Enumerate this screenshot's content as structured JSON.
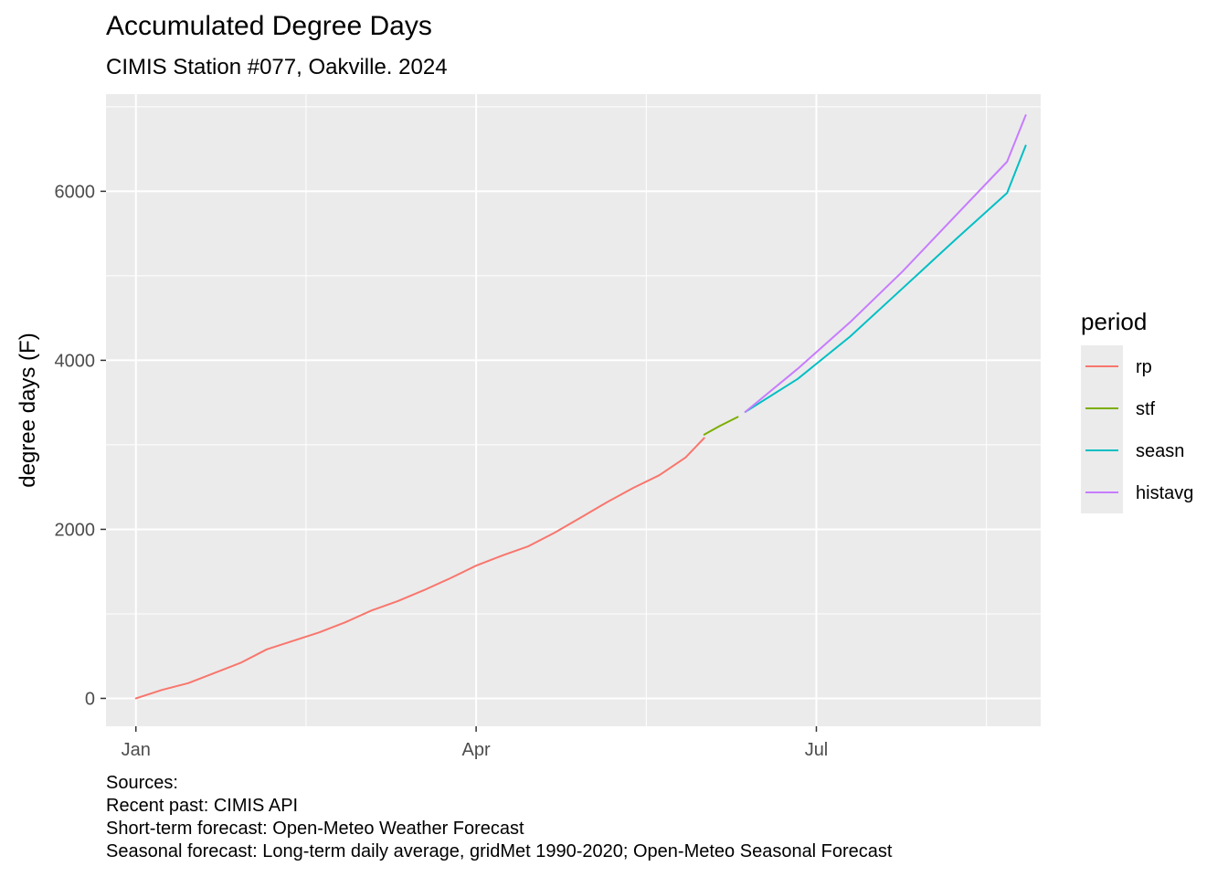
{
  "chart_data": {
    "type": "line",
    "title": "Accumulated Degree Days",
    "subtitle": "CIMIS Station #077, Oakville. 2024",
    "xlabel": "",
    "ylabel": "degree days (F)",
    "x_ticks": [
      "Jan",
      "Apr",
      "Jul"
    ],
    "x_tick_dates": [
      "2024-01-01",
      "2024-04-01",
      "2024-07-01"
    ],
    "xlim": [
      "2023-12-24",
      "2024-08-30"
    ],
    "y_ticks": [
      0,
      2000,
      4000,
      6000
    ],
    "ylim": [
      -330,
      7150
    ],
    "grid": true,
    "legend": {
      "title": "period",
      "position": "right",
      "entries": [
        "rp",
        "stf",
        "seasn",
        "histavg"
      ]
    },
    "series": [
      {
        "name": "rp",
        "color": "#F8766D",
        "x": [
          "2024-01-01",
          "2024-01-08",
          "2024-01-15",
          "2024-01-22",
          "2024-01-29",
          "2024-02-05",
          "2024-02-12",
          "2024-02-19",
          "2024-02-26",
          "2024-03-04",
          "2024-03-11",
          "2024-03-18",
          "2024-03-25",
          "2024-04-01",
          "2024-04-08",
          "2024-04-15",
          "2024-04-22",
          "2024-04-29",
          "2024-05-06",
          "2024-05-13",
          "2024-05-20",
          "2024-05-27",
          "2024-06-01"
        ],
        "y": [
          0,
          100,
          180,
          300,
          420,
          580,
          680,
          780,
          900,
          1040,
          1150,
          1280,
          1420,
          1570,
          1690,
          1800,
          1960,
          2140,
          2320,
          2490,
          2640,
          2850,
          3080
        ]
      },
      {
        "name": "stf",
        "color": "#7CAE00",
        "x": [
          "2024-06-01",
          "2024-06-05",
          "2024-06-10"
        ],
        "y": [
          3120,
          3220,
          3330
        ]
      },
      {
        "name": "seasn",
        "color": "#00BFC4",
        "x": [
          "2024-06-12",
          "2024-06-26",
          "2024-07-10",
          "2024-07-24",
          "2024-08-07",
          "2024-08-21",
          "2024-08-26"
        ],
        "y": [
          3390,
          3780,
          4280,
          4850,
          5420,
          5980,
          6540
        ]
      },
      {
        "name": "histavg",
        "color": "#C77CFF",
        "x": [
          "2024-06-12",
          "2024-06-26",
          "2024-07-10",
          "2024-07-24",
          "2024-08-07",
          "2024-08-21",
          "2024-08-26"
        ],
        "y": [
          3390,
          3900,
          4450,
          5050,
          5700,
          6350,
          6900
        ]
      }
    ]
  },
  "caption": {
    "line1": "Sources:",
    "line2": "Recent past: CIMIS API",
    "line3": "Short-term forecast: Open-Meteo Weather Forecast",
    "line4": "Seasonal forecast: Long-term daily average, gridMet 1990-2020; Open-Meteo Seasonal Forecast"
  },
  "colors": {
    "panel_background": "#EBEBEB",
    "grid": "#FFFFFF",
    "axis_text": "#4D4D4D"
  }
}
